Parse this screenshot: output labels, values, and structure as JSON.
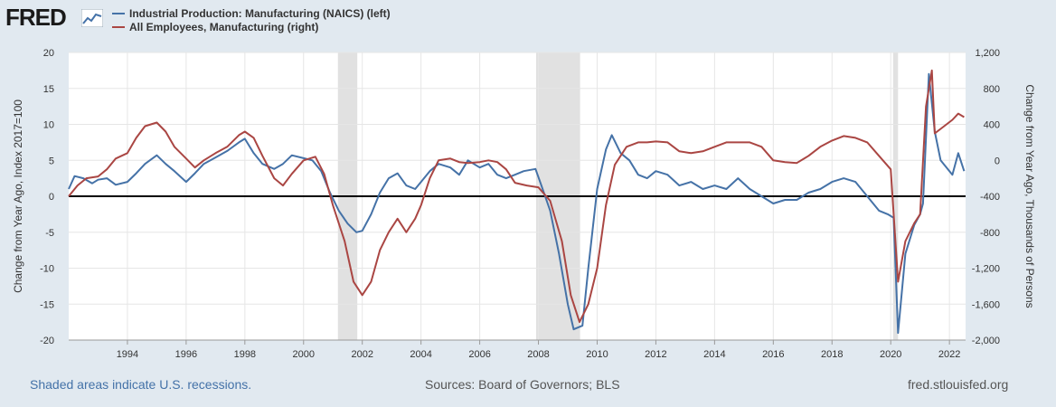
{
  "brand": {
    "name": "FRED"
  },
  "legend": [
    {
      "label": "Industrial Production: Manufacturing (NAICS) (left)",
      "color": "#4572a7"
    },
    {
      "label": "All Employees, Manufacturing (right)",
      "color": "#aa4643"
    }
  ],
  "footer": {
    "recession_note": "Shaded areas indicate U.S. recessions.",
    "sources": "Sources: Board of Governors; BLS",
    "site": "fred.stlouisfed.org"
  },
  "chart_data": {
    "type": "line",
    "ylabel_left": "Change from Year Ago, Index 2017=100",
    "ylabel_right": "Change from Year Ago, Thousands of Persons",
    "x_range": [
      1992.0,
      2022.55
    ],
    "ylim_left": [
      -20,
      20
    ],
    "ylim_right": [
      -2000,
      1200
    ],
    "yticks_left": [
      -20,
      -15,
      -10,
      -5,
      0,
      5,
      10,
      15,
      20
    ],
    "yticks_left_labels": [
      "-20",
      "-15",
      "-10",
      "-5",
      "0",
      "5",
      "10",
      "15",
      "20"
    ],
    "yticks_right": [
      -2000,
      -1600,
      -1200,
      -800,
      -400,
      0,
      400,
      800,
      1200
    ],
    "yticks_right_labels": [
      "-2,000",
      "-1,600",
      "-1,200",
      "-800",
      "-400",
      "0",
      "400",
      "800",
      "1,200"
    ],
    "xticks": [
      1994,
      1996,
      1998,
      2000,
      2002,
      2004,
      2006,
      2008,
      2010,
      2012,
      2014,
      2016,
      2018,
      2020,
      2022
    ],
    "xtick_labels": [
      "1994",
      "1996",
      "1998",
      "2000",
      "2002",
      "2004",
      "2006",
      "2008",
      "2010",
      "2012",
      "2014",
      "2016",
      "2018",
      "2020",
      "2022"
    ],
    "grid": true,
    "zero_line": true,
    "legend_position": "top-left",
    "recessions": [
      [
        2001.17,
        2001.83
      ],
      [
        2007.92,
        2009.42
      ],
      [
        2020.08,
        2020.25
      ]
    ],
    "series": [
      {
        "name": "Industrial Production: Manufacturing (NAICS) (left)",
        "axis": "left",
        "color": "#4572a7",
        "points": [
          [
            1992.0,
            1.0
          ],
          [
            1992.2,
            2.8
          ],
          [
            1992.5,
            2.5
          ],
          [
            1992.8,
            1.8
          ],
          [
            1993.0,
            2.3
          ],
          [
            1993.3,
            2.5
          ],
          [
            1993.6,
            1.6
          ],
          [
            1994.0,
            2.0
          ],
          [
            1994.3,
            3.2
          ],
          [
            1994.6,
            4.5
          ],
          [
            1995.0,
            5.7
          ],
          [
            1995.3,
            4.5
          ],
          [
            1995.6,
            3.5
          ],
          [
            1996.0,
            2.0
          ],
          [
            1996.3,
            3.2
          ],
          [
            1996.6,
            4.5
          ],
          [
            1997.0,
            5.4
          ],
          [
            1997.4,
            6.3
          ],
          [
            1997.8,
            7.5
          ],
          [
            1998.0,
            8.0
          ],
          [
            1998.3,
            6.0
          ],
          [
            1998.6,
            4.5
          ],
          [
            1999.0,
            3.8
          ],
          [
            1999.3,
            4.5
          ],
          [
            1999.6,
            5.7
          ],
          [
            2000.0,
            5.3
          ],
          [
            2000.3,
            5.0
          ],
          [
            2000.6,
            3.5
          ],
          [
            2000.9,
            0.5
          ],
          [
            2001.2,
            -2.0
          ],
          [
            2001.5,
            -3.8
          ],
          [
            2001.8,
            -5.0
          ],
          [
            2002.0,
            -4.8
          ],
          [
            2002.3,
            -2.5
          ],
          [
            2002.6,
            0.5
          ],
          [
            2002.9,
            2.5
          ],
          [
            2003.2,
            3.2
          ],
          [
            2003.5,
            1.5
          ],
          [
            2003.8,
            1.0
          ],
          [
            2004.0,
            2.0
          ],
          [
            2004.3,
            3.5
          ],
          [
            2004.6,
            4.5
          ],
          [
            2005.0,
            4.0
          ],
          [
            2005.3,
            3.0
          ],
          [
            2005.6,
            5.0
          ],
          [
            2006.0,
            4.0
          ],
          [
            2006.3,
            4.5
          ],
          [
            2006.6,
            3.0
          ],
          [
            2006.9,
            2.5
          ],
          [
            2007.2,
            3.0
          ],
          [
            2007.5,
            3.5
          ],
          [
            2007.9,
            3.8
          ],
          [
            2008.1,
            1.5
          ],
          [
            2008.4,
            -2.0
          ],
          [
            2008.7,
            -8.0
          ],
          [
            2009.0,
            -15.0
          ],
          [
            2009.2,
            -18.5
          ],
          [
            2009.5,
            -18.0
          ],
          [
            2009.7,
            -10.0
          ],
          [
            2010.0,
            1.0
          ],
          [
            2010.3,
            6.5
          ],
          [
            2010.5,
            8.5
          ],
          [
            2010.8,
            6.0
          ],
          [
            2011.1,
            5.0
          ],
          [
            2011.4,
            3.0
          ],
          [
            2011.7,
            2.5
          ],
          [
            2012.0,
            3.5
          ],
          [
            2012.4,
            3.0
          ],
          [
            2012.8,
            1.5
          ],
          [
            2013.2,
            2.0
          ],
          [
            2013.6,
            1.0
          ],
          [
            2014.0,
            1.5
          ],
          [
            2014.4,
            1.0
          ],
          [
            2014.8,
            2.5
          ],
          [
            2015.2,
            1.0
          ],
          [
            2015.6,
            0.0
          ],
          [
            2016.0,
            -1.0
          ],
          [
            2016.4,
            -0.5
          ],
          [
            2016.8,
            -0.5
          ],
          [
            2017.2,
            0.5
          ],
          [
            2017.6,
            1.0
          ],
          [
            2018.0,
            2.0
          ],
          [
            2018.4,
            2.5
          ],
          [
            2018.8,
            2.0
          ],
          [
            2019.2,
            0.0
          ],
          [
            2019.6,
            -2.0
          ],
          [
            2019.9,
            -2.5
          ],
          [
            2020.1,
            -3.0
          ],
          [
            2020.25,
            -19.0
          ],
          [
            2020.5,
            -8.0
          ],
          [
            2020.8,
            -4.0
          ],
          [
            2021.0,
            -2.5
          ],
          [
            2021.1,
            -1.0
          ],
          [
            2021.3,
            17.0
          ],
          [
            2021.5,
            9.0
          ],
          [
            2021.7,
            5.0
          ],
          [
            2021.9,
            4.0
          ],
          [
            2022.1,
            3.0
          ],
          [
            2022.3,
            6.0
          ],
          [
            2022.5,
            3.5
          ]
        ]
      },
      {
        "name": "All Employees, Manufacturing (right)",
        "axis": "right",
        "color": "#aa4643",
        "points": [
          [
            1992.0,
            -400
          ],
          [
            1992.3,
            -280
          ],
          [
            1992.6,
            -200
          ],
          [
            1993.0,
            -180
          ],
          [
            1993.3,
            -100
          ],
          [
            1993.6,
            20
          ],
          [
            1994.0,
            80
          ],
          [
            1994.3,
            250
          ],
          [
            1994.6,
            380
          ],
          [
            1995.0,
            420
          ],
          [
            1995.3,
            320
          ],
          [
            1995.6,
            150
          ],
          [
            1996.0,
            20
          ],
          [
            1996.3,
            -80
          ],
          [
            1996.6,
            0
          ],
          [
            1997.0,
            80
          ],
          [
            1997.4,
            150
          ],
          [
            1997.8,
            280
          ],
          [
            1998.0,
            320
          ],
          [
            1998.3,
            250
          ],
          [
            1998.6,
            50
          ],
          [
            1999.0,
            -200
          ],
          [
            1999.3,
            -280
          ],
          [
            1999.6,
            -150
          ],
          [
            2000.0,
            0
          ],
          [
            2000.4,
            40
          ],
          [
            2000.7,
            -150
          ],
          [
            2001.0,
            -500
          ],
          [
            2001.4,
            -900
          ],
          [
            2001.7,
            -1350
          ],
          [
            2002.0,
            -1500
          ],
          [
            2002.3,
            -1350
          ],
          [
            2002.6,
            -1000
          ],
          [
            2002.9,
            -800
          ],
          [
            2003.2,
            -650
          ],
          [
            2003.5,
            -800
          ],
          [
            2003.8,
            -650
          ],
          [
            2004.0,
            -500
          ],
          [
            2004.3,
            -200
          ],
          [
            2004.6,
            0
          ],
          [
            2005.0,
            20
          ],
          [
            2005.3,
            -20
          ],
          [
            2005.6,
            -30
          ],
          [
            2006.0,
            -20
          ],
          [
            2006.3,
            0
          ],
          [
            2006.6,
            -20
          ],
          [
            2006.9,
            -100
          ],
          [
            2007.2,
            -250
          ],
          [
            2007.6,
            -280
          ],
          [
            2008.0,
            -300
          ],
          [
            2008.4,
            -450
          ],
          [
            2008.8,
            -900
          ],
          [
            2009.1,
            -1500
          ],
          [
            2009.4,
            -1800
          ],
          [
            2009.7,
            -1600
          ],
          [
            2010.0,
            -1200
          ],
          [
            2010.3,
            -500
          ],
          [
            2010.6,
            -50
          ],
          [
            2011.0,
            150
          ],
          [
            2011.4,
            200
          ],
          [
            2011.7,
            200
          ],
          [
            2012.0,
            210
          ],
          [
            2012.4,
            200
          ],
          [
            2012.8,
            100
          ],
          [
            2013.2,
            80
          ],
          [
            2013.6,
            100
          ],
          [
            2014.0,
            150
          ],
          [
            2014.4,
            200
          ],
          [
            2014.8,
            200
          ],
          [
            2015.2,
            200
          ],
          [
            2015.6,
            150
          ],
          [
            2016.0,
            0
          ],
          [
            2016.4,
            -20
          ],
          [
            2016.8,
            -30
          ],
          [
            2017.2,
            50
          ],
          [
            2017.6,
            150
          ],
          [
            2018.0,
            220
          ],
          [
            2018.4,
            270
          ],
          [
            2018.8,
            250
          ],
          [
            2019.2,
            200
          ],
          [
            2019.6,
            50
          ],
          [
            2020.0,
            -100
          ],
          [
            2020.25,
            -1350
          ],
          [
            2020.5,
            -900
          ],
          [
            2020.8,
            -700
          ],
          [
            2021.0,
            -600
          ],
          [
            2021.2,
            600
          ],
          [
            2021.4,
            1000
          ],
          [
            2021.5,
            300
          ],
          [
            2021.7,
            350
          ],
          [
            2021.9,
            400
          ],
          [
            2022.1,
            450
          ],
          [
            2022.3,
            520
          ],
          [
            2022.5,
            480
          ]
        ]
      }
    ]
  }
}
